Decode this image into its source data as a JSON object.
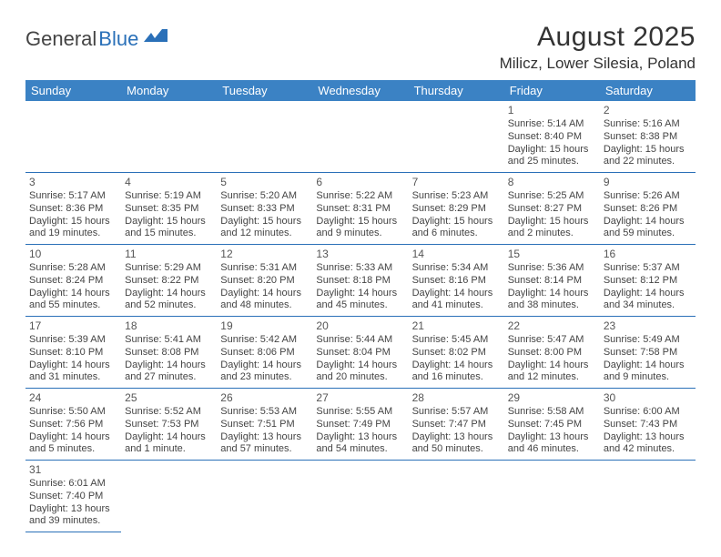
{
  "logo": {
    "text1": "General",
    "text2": "Blue"
  },
  "header": {
    "month_title": "August 2025",
    "location": "Milicz, Lower Silesia, Poland"
  },
  "colors": {
    "header_bg": "#3b82c4",
    "header_text": "#ffffff",
    "rule": "#2a70b8",
    "body_text": "#444444",
    "page_bg": "#ffffff"
  },
  "weekdays": [
    "Sunday",
    "Monday",
    "Tuesday",
    "Wednesday",
    "Thursday",
    "Friday",
    "Saturday"
  ],
  "rows": [
    [
      null,
      null,
      null,
      null,
      null,
      {
        "n": "1",
        "sr": "Sunrise: 5:14 AM",
        "ss": "Sunset: 8:40 PM",
        "dl": "Daylight: 15 hours and 25 minutes."
      },
      {
        "n": "2",
        "sr": "Sunrise: 5:16 AM",
        "ss": "Sunset: 8:38 PM",
        "dl": "Daylight: 15 hours and 22 minutes."
      }
    ],
    [
      {
        "n": "3",
        "sr": "Sunrise: 5:17 AM",
        "ss": "Sunset: 8:36 PM",
        "dl": "Daylight: 15 hours and 19 minutes."
      },
      {
        "n": "4",
        "sr": "Sunrise: 5:19 AM",
        "ss": "Sunset: 8:35 PM",
        "dl": "Daylight: 15 hours and 15 minutes."
      },
      {
        "n": "5",
        "sr": "Sunrise: 5:20 AM",
        "ss": "Sunset: 8:33 PM",
        "dl": "Daylight: 15 hours and 12 minutes."
      },
      {
        "n": "6",
        "sr": "Sunrise: 5:22 AM",
        "ss": "Sunset: 8:31 PM",
        "dl": "Daylight: 15 hours and 9 minutes."
      },
      {
        "n": "7",
        "sr": "Sunrise: 5:23 AM",
        "ss": "Sunset: 8:29 PM",
        "dl": "Daylight: 15 hours and 6 minutes."
      },
      {
        "n": "8",
        "sr": "Sunrise: 5:25 AM",
        "ss": "Sunset: 8:27 PM",
        "dl": "Daylight: 15 hours and 2 minutes."
      },
      {
        "n": "9",
        "sr": "Sunrise: 5:26 AM",
        "ss": "Sunset: 8:26 PM",
        "dl": "Daylight: 14 hours and 59 minutes."
      }
    ],
    [
      {
        "n": "10",
        "sr": "Sunrise: 5:28 AM",
        "ss": "Sunset: 8:24 PM",
        "dl": "Daylight: 14 hours and 55 minutes."
      },
      {
        "n": "11",
        "sr": "Sunrise: 5:29 AM",
        "ss": "Sunset: 8:22 PM",
        "dl": "Daylight: 14 hours and 52 minutes."
      },
      {
        "n": "12",
        "sr": "Sunrise: 5:31 AM",
        "ss": "Sunset: 8:20 PM",
        "dl": "Daylight: 14 hours and 48 minutes."
      },
      {
        "n": "13",
        "sr": "Sunrise: 5:33 AM",
        "ss": "Sunset: 8:18 PM",
        "dl": "Daylight: 14 hours and 45 minutes."
      },
      {
        "n": "14",
        "sr": "Sunrise: 5:34 AM",
        "ss": "Sunset: 8:16 PM",
        "dl": "Daylight: 14 hours and 41 minutes."
      },
      {
        "n": "15",
        "sr": "Sunrise: 5:36 AM",
        "ss": "Sunset: 8:14 PM",
        "dl": "Daylight: 14 hours and 38 minutes."
      },
      {
        "n": "16",
        "sr": "Sunrise: 5:37 AM",
        "ss": "Sunset: 8:12 PM",
        "dl": "Daylight: 14 hours and 34 minutes."
      }
    ],
    [
      {
        "n": "17",
        "sr": "Sunrise: 5:39 AM",
        "ss": "Sunset: 8:10 PM",
        "dl": "Daylight: 14 hours and 31 minutes."
      },
      {
        "n": "18",
        "sr": "Sunrise: 5:41 AM",
        "ss": "Sunset: 8:08 PM",
        "dl": "Daylight: 14 hours and 27 minutes."
      },
      {
        "n": "19",
        "sr": "Sunrise: 5:42 AM",
        "ss": "Sunset: 8:06 PM",
        "dl": "Daylight: 14 hours and 23 minutes."
      },
      {
        "n": "20",
        "sr": "Sunrise: 5:44 AM",
        "ss": "Sunset: 8:04 PM",
        "dl": "Daylight: 14 hours and 20 minutes."
      },
      {
        "n": "21",
        "sr": "Sunrise: 5:45 AM",
        "ss": "Sunset: 8:02 PM",
        "dl": "Daylight: 14 hours and 16 minutes."
      },
      {
        "n": "22",
        "sr": "Sunrise: 5:47 AM",
        "ss": "Sunset: 8:00 PM",
        "dl": "Daylight: 14 hours and 12 minutes."
      },
      {
        "n": "23",
        "sr": "Sunrise: 5:49 AM",
        "ss": "Sunset: 7:58 PM",
        "dl": "Daylight: 14 hours and 9 minutes."
      }
    ],
    [
      {
        "n": "24",
        "sr": "Sunrise: 5:50 AM",
        "ss": "Sunset: 7:56 PM",
        "dl": "Daylight: 14 hours and 5 minutes."
      },
      {
        "n": "25",
        "sr": "Sunrise: 5:52 AM",
        "ss": "Sunset: 7:53 PM",
        "dl": "Daylight: 14 hours and 1 minute."
      },
      {
        "n": "26",
        "sr": "Sunrise: 5:53 AM",
        "ss": "Sunset: 7:51 PM",
        "dl": "Daylight: 13 hours and 57 minutes."
      },
      {
        "n": "27",
        "sr": "Sunrise: 5:55 AM",
        "ss": "Sunset: 7:49 PM",
        "dl": "Daylight: 13 hours and 54 minutes."
      },
      {
        "n": "28",
        "sr": "Sunrise: 5:57 AM",
        "ss": "Sunset: 7:47 PM",
        "dl": "Daylight: 13 hours and 50 minutes."
      },
      {
        "n": "29",
        "sr": "Sunrise: 5:58 AM",
        "ss": "Sunset: 7:45 PM",
        "dl": "Daylight: 13 hours and 46 minutes."
      },
      {
        "n": "30",
        "sr": "Sunrise: 6:00 AM",
        "ss": "Sunset: 7:43 PM",
        "dl": "Daylight: 13 hours and 42 minutes."
      }
    ],
    [
      {
        "n": "31",
        "sr": "Sunrise: 6:01 AM",
        "ss": "Sunset: 7:40 PM",
        "dl": "Daylight: 13 hours and 39 minutes."
      },
      null,
      null,
      null,
      null,
      null,
      null
    ]
  ]
}
